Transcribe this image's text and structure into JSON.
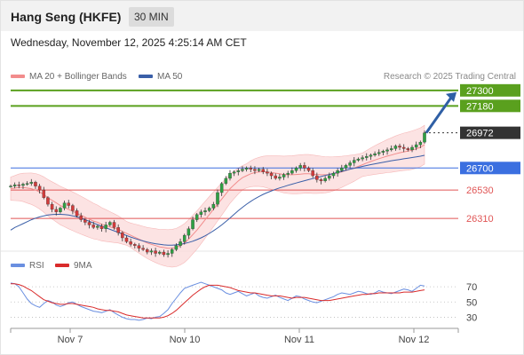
{
  "header": {
    "title": "Hang Seng (HKFE)",
    "timeframe": "30 MIN"
  },
  "timestamp": "Wednesday, November 12, 2025 4:25:14 AM CET",
  "legend": {
    "items": [
      {
        "label": "MA 20 + Bollinger Bands",
        "color": "#f28c8c"
      },
      {
        "label": "MA 50",
        "color": "#3a5fa8"
      }
    ],
    "credit": "Research © 2025 Trading Central"
  },
  "rsi_legend": {
    "items": [
      {
        "label": "RSI",
        "color": "#6a8fe0"
      },
      {
        "label": "9MA",
        "color": "#d92b2b"
      }
    ]
  },
  "chart_data": [
    {
      "type": "candlestick",
      "y_range": [
        26160,
        27340
      ],
      "x_ticks": [
        "Nov 7",
        "Nov 10",
        "Nov 11",
        "Nov 12"
      ],
      "levels": [
        {
          "value": 27300,
          "label": "27300",
          "kind": "resistance",
          "color": "#5aa01e"
        },
        {
          "value": 27180,
          "label": "27180",
          "kind": "resistance",
          "color": "#5aa01e"
        },
        {
          "value": 26972,
          "label": "26972",
          "kind": "last",
          "color": "#333333"
        },
        {
          "value": 26700,
          "label": "26700",
          "kind": "pivot",
          "color": "#3b6fe0"
        },
        {
          "value": 26530,
          "label": "26530",
          "kind": "support",
          "color": "#e05555"
        },
        {
          "value": 26310,
          "label": "26310",
          "kind": "support",
          "color": "#e05555"
        }
      ],
      "close_series": [
        26560,
        26570,
        26565,
        26575,
        26580,
        26590,
        26560,
        26530,
        26470,
        26420,
        26380,
        26360,
        26390,
        26430,
        26410,
        26370,
        26330,
        26300,
        26280,
        26260,
        26240,
        26250,
        26230,
        26260,
        26280,
        26240,
        26200,
        26160,
        26130,
        26110,
        26100,
        26080,
        26070,
        26050,
        26060,
        26040,
        26050,
        26030,
        26040,
        26070,
        26100,
        26130,
        26180,
        26230,
        26300,
        26340,
        26360,
        26370,
        26390,
        26420,
        26510,
        26580,
        26620,
        26660,
        26670,
        26680,
        26690,
        26700,
        26690,
        26680,
        26690,
        26670,
        26660,
        26640,
        26620,
        26630,
        26650,
        26660,
        26680,
        26700,
        26720,
        26700,
        26680,
        26640,
        26610,
        26600,
        26620,
        26640,
        26660,
        26680,
        26700,
        26720,
        26740,
        26760,
        26770,
        26780,
        26790,
        26800,
        26810,
        26820,
        26830,
        26840,
        26850,
        26870,
        26860,
        26850,
        26840,
        26860,
        26880,
        26900,
        26972
      ],
      "ma20_series": [
        26540,
        26545,
        26550,
        26550,
        26545,
        26540,
        26530,
        26515,
        26495,
        26470,
        26450,
        26430,
        26410,
        26395,
        26380,
        26365,
        26350,
        26335,
        26320,
        26305,
        26290,
        26280,
        26265,
        26255,
        26245,
        26235,
        26225,
        26210,
        26195,
        26180,
        26165,
        26150,
        26135,
        26120,
        26110,
        26100,
        26090,
        26085,
        26080,
        26080,
        26085,
        26100,
        26120,
        26150,
        26185,
        26220,
        26260,
        26300,
        26340,
        26380,
        26420,
        26460,
        26500,
        26540,
        26570,
        26600,
        26625,
        26640,
        26655,
        26665,
        26670,
        26672,
        26670,
        26665,
        26660,
        26655,
        26650,
        26648,
        26648,
        26650,
        26652,
        26655,
        26655,
        26652,
        26650,
        26648,
        26648,
        26650,
        26655,
        26662,
        26670,
        26680,
        26690,
        26700,
        26712,
        26725,
        26738,
        26750,
        26762,
        26772,
        26782,
        26792,
        26800,
        26810,
        26818,
        26825,
        26830,
        26838,
        26848,
        26860,
        26880
      ],
      "ma50_series": [
        26220,
        26240,
        26255,
        26270,
        26285,
        26300,
        26312,
        26322,
        26330,
        26336,
        26340,
        26342,
        26342,
        26340,
        26336,
        26330,
        26322,
        26312,
        26300,
        26288,
        26275,
        26262,
        26250,
        26238,
        26226,
        26214,
        26202,
        26190,
        26178,
        26166,
        26155,
        26145,
        26136,
        26128,
        26121,
        26115,
        26110,
        26106,
        26104,
        26104,
        26106,
        26110,
        26116,
        26124,
        26134,
        26146,
        26160,
        26176,
        26194,
        26214,
        26236,
        26260,
        26286,
        26314,
        26342,
        26370,
        26396,
        26420,
        26442,
        26462,
        26480,
        26496,
        26510,
        26523,
        26535,
        26546,
        26556,
        26566,
        26575,
        26584,
        26593,
        26602,
        26610,
        26618,
        26626,
        26634,
        26642,
        26650,
        26658,
        26666,
        26674,
        26682,
        26690,
        26698,
        26705,
        26712,
        26719,
        26726,
        26732,
        26738,
        26744,
        26750,
        26756,
        26761,
        26766,
        26771,
        26776,
        26781,
        26786,
        26791,
        26798
      ],
      "forecast": {
        "from": 26972,
        "to": 27300
      }
    },
    {
      "type": "line",
      "title": "RSI",
      "y_ticks": [
        70,
        50,
        30
      ],
      "y_range": [
        20,
        83
      ],
      "series": [
        {
          "name": "RSI",
          "values": [
            75,
            74,
            70,
            62,
            54,
            48,
            45,
            43,
            48,
            52,
            50,
            46,
            44,
            46,
            49,
            50,
            47,
            44,
            42,
            40,
            38,
            37,
            36,
            38,
            40,
            36,
            33,
            30,
            28,
            27,
            27,
            26,
            27,
            29,
            28,
            30,
            31,
            35,
            40,
            48,
            55,
            62,
            68,
            70,
            72,
            74,
            76,
            74,
            72,
            70,
            68,
            66,
            62,
            60,
            62,
            64,
            61,
            58,
            60,
            62,
            58,
            56,
            55,
            57,
            59,
            56,
            54,
            52,
            55,
            58,
            57,
            54,
            52,
            50,
            49,
            51,
            53,
            55,
            57,
            60,
            62,
            61,
            60,
            62,
            64,
            63,
            61,
            60,
            62,
            65,
            63,
            62,
            61,
            63,
            65,
            67,
            66,
            64,
            68,
            72,
            71
          ]
        },
        {
          "name": "9MA",
          "values": [
            74,
            74,
            73,
            71,
            68,
            65,
            61,
            57,
            53,
            51,
            49,
            48,
            47,
            47,
            48,
            48,
            47,
            46,
            45,
            44,
            43,
            41,
            40,
            39,
            39,
            38,
            37,
            35,
            33,
            32,
            31,
            30,
            29,
            29,
            29,
            29,
            29,
            30,
            32,
            35,
            39,
            44,
            49,
            54,
            59,
            63,
            67,
            70,
            72,
            72,
            72,
            71,
            70,
            69,
            67,
            65,
            64,
            63,
            62,
            62,
            61,
            60,
            59,
            58,
            58,
            58,
            57,
            56,
            55,
            56,
            56,
            56,
            55,
            54,
            53,
            52,
            52,
            52,
            53,
            54,
            55,
            56,
            57,
            58,
            59,
            60,
            60,
            61,
            61,
            62,
            62,
            62,
            62,
            62,
            62,
            63,
            63,
            63,
            64,
            65,
            66
          ]
        }
      ],
      "x_ticks": [
        "Nov 7",
        "Nov 10",
        "Nov 11",
        "Nov 12"
      ]
    }
  ]
}
